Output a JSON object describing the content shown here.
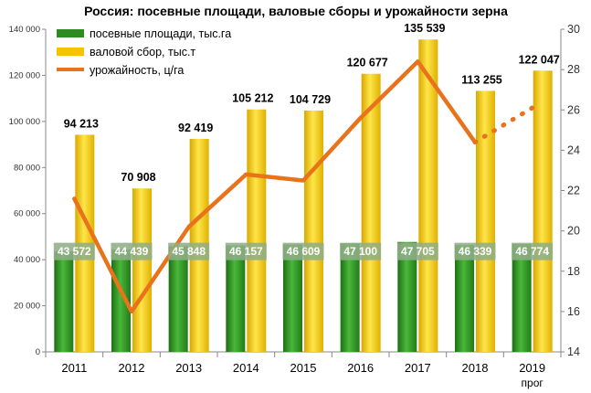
{
  "chart_data": {
    "type": "bar",
    "title": "Россия: посевные площади, валовые сборы и урожайности зерна",
    "categories": [
      "2011",
      "2012",
      "2013",
      "2014",
      "2015",
      "2016",
      "2017",
      "2018",
      "2019"
    ],
    "category_sub": [
      "",
      "",
      "",
      "",
      "",
      "",
      "",
      "",
      "прог"
    ],
    "series": [
      {
        "name": "посевные площади, тыс.га",
        "type": "bar",
        "axis": "left",
        "color": "#2e8b22",
        "values": [
          43572,
          44439,
          45848,
          46157,
          46609,
          47100,
          47705,
          46339,
          46774
        ],
        "labels": [
          "43 572",
          "44 439",
          "45 848",
          "46 157",
          "46 609",
          "47 100",
          "47 705",
          "46 339",
          "46 774"
        ]
      },
      {
        "name": "валовой сбор, тыс.т",
        "type": "bar",
        "axis": "left",
        "color": "#f5c400",
        "values": [
          94213,
          70908,
          92419,
          105212,
          104729,
          120677,
          135539,
          113255,
          122047
        ],
        "labels": [
          "94 213",
          "70 908",
          "92 419",
          "105 212",
          "104 729",
          "120 677",
          "135 539",
          "113 255",
          "122 047"
        ]
      },
      {
        "name": "урожайность, ц/га",
        "type": "line",
        "axis": "right",
        "color": "#e8731c",
        "values": [
          21.6,
          16.0,
          20.2,
          22.8,
          22.5,
          25.6,
          28.4,
          24.4,
          26.1
        ],
        "forecast_from_index": 7
      }
    ],
    "left_axis": {
      "min": 0,
      "max": 140000,
      "ticks": [
        0,
        20000,
        40000,
        60000,
        80000,
        100000,
        120000,
        140000
      ],
      "tick_labels": [
        "0",
        "20 000",
        "40 000",
        "60 000",
        "80 000",
        "100 000",
        "120 000",
        "140 000"
      ]
    },
    "right_axis": {
      "min": 14,
      "max": 30,
      "ticks": [
        14,
        16,
        18,
        20,
        22,
        24,
        26,
        28,
        30
      ],
      "tick_labels": [
        "14",
        "16",
        "18",
        "20",
        "22",
        "24",
        "26",
        "28",
        "30"
      ]
    },
    "legend_position": "top-left",
    "grid": false
  }
}
